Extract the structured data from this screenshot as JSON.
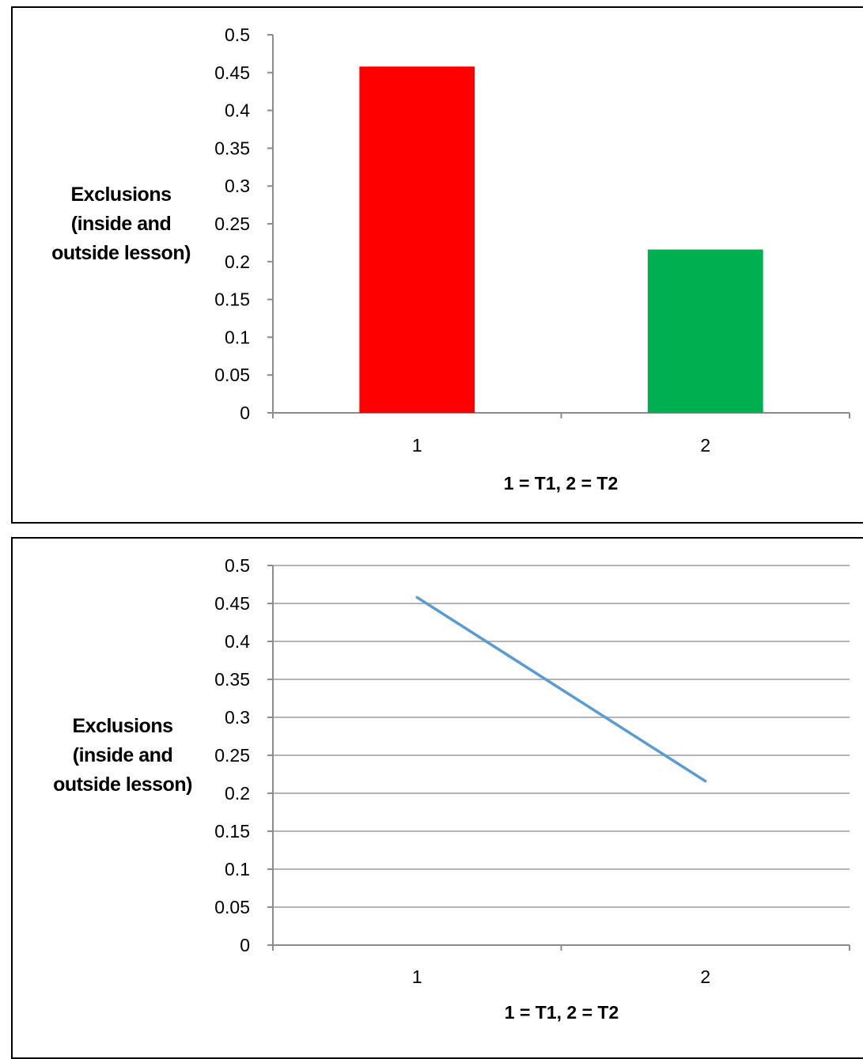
{
  "chart_data": [
    {
      "type": "bar",
      "categories": [
        "1",
        "2"
      ],
      "values": [
        0.458,
        0.216
      ],
      "colors": [
        "#ff0000",
        "#00b050"
      ],
      "ylabel_lines": [
        "Exclusions",
        "(inside and",
        "outside lesson)"
      ],
      "xlabel": "1 = T1, 2 = T2",
      "ylim": [
        0,
        0.5
      ],
      "yticks": [
        "0",
        "0.05",
        "0.1",
        "0.15",
        "0.2",
        "0.25",
        "0.3",
        "0.35",
        "0.4",
        "0.45",
        "0.5"
      ],
      "grid": false,
      "legend": "none"
    },
    {
      "type": "line",
      "categories": [
        "1",
        "2"
      ],
      "values": [
        0.458,
        0.216
      ],
      "line_color": "#5b9bd5",
      "ylabel_lines": [
        "Exclusions",
        "(inside and",
        "outside lesson)"
      ],
      "xlabel": "1 = T1, 2 = T2",
      "ylim": [
        0,
        0.5
      ],
      "yticks": [
        "0",
        "0.05",
        "0.1",
        "0.15",
        "0.2",
        "0.25",
        "0.3",
        "0.35",
        "0.4",
        "0.45",
        "0.5"
      ],
      "grid": true,
      "legend": "none"
    }
  ]
}
